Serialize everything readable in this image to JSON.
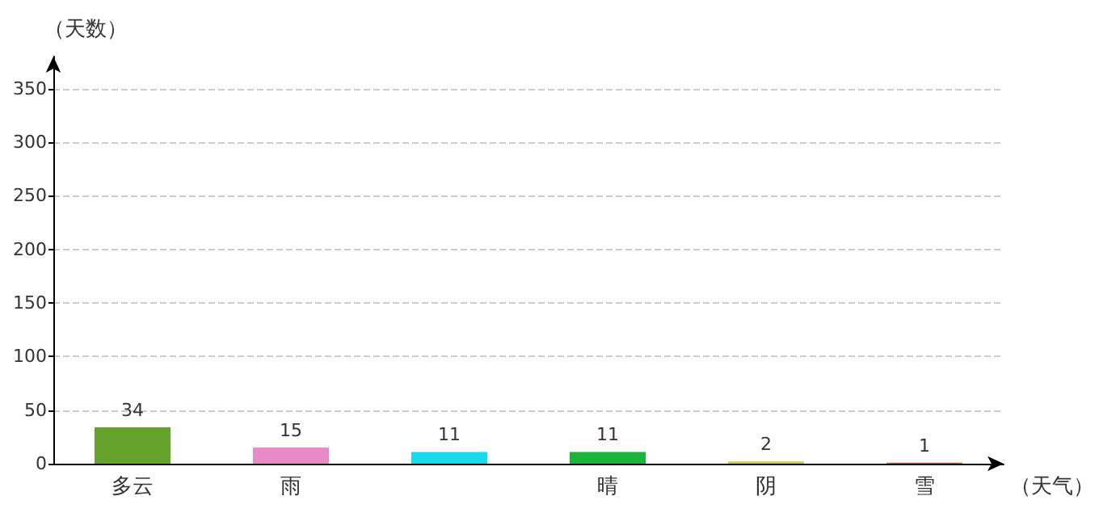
{
  "chart_data": {
    "type": "bar",
    "xlabel": "（天气）",
    "ylabel": "（天数）",
    "categories": [
      "多云",
      "雨",
      null,
      "晴",
      "阴",
      "雪"
    ],
    "values": [
      34,
      15,
      11,
      11,
      2,
      1
    ],
    "colors": [
      "#65a32e",
      "#e88ac8",
      "#1dd9ec",
      "#1bb33a",
      "#c8c860",
      "#d05a3a"
    ],
    "ylim": [
      0,
      380
    ],
    "yticks": [
      0,
      50,
      100,
      150,
      200,
      250,
      300,
      350
    ],
    "grid": "y",
    "data_labels": true
  }
}
